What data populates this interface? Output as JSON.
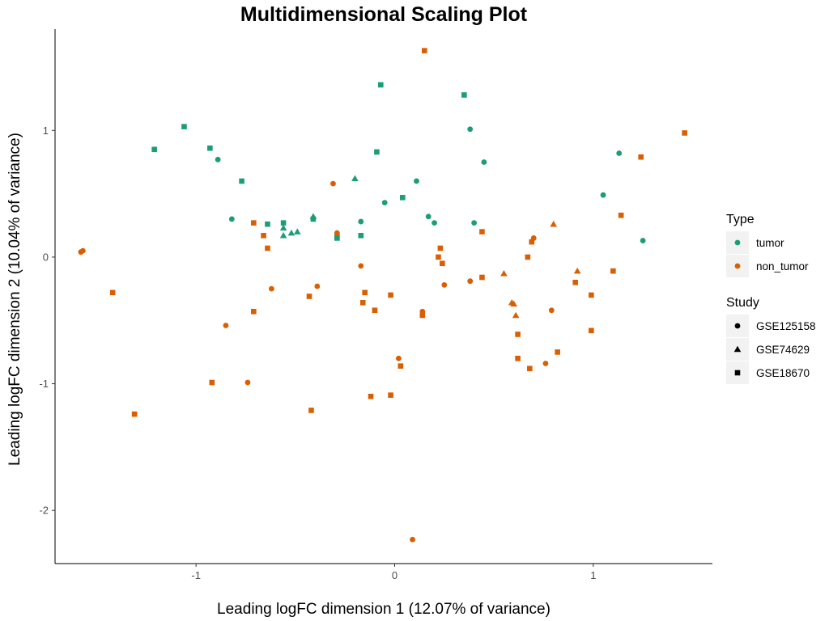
{
  "chart_data": {
    "type": "scatter",
    "title": "Multidimensional Scaling Plot",
    "xlabel": "Leading logFC dimension 1 (12.07% of variance)",
    "ylabel": "Leading logFC dimension 2 (10.04% of variance)",
    "xlim": [
      -1.71,
      1.6
    ],
    "ylim": [
      -2.42,
      1.8
    ],
    "x_ticks": [
      -1,
      0,
      1
    ],
    "y_ticks": [
      -2,
      -1,
      0,
      1
    ],
    "grid": false,
    "legend_position": "right",
    "legends": [
      {
        "title": "Type",
        "items": [
          {
            "label": "tumor",
            "color": "#1b9e77",
            "shape": "circle"
          },
          {
            "label": "non_tumor",
            "color": "#d95f02",
            "shape": "circle"
          }
        ]
      },
      {
        "title": "Study",
        "items": [
          {
            "label": "GSE125158",
            "color": "#000000",
            "shape": "circle"
          },
          {
            "label": "GSE74629",
            "color": "#000000",
            "shape": "triangle"
          },
          {
            "label": "GSE18670",
            "color": "#000000",
            "shape": "square"
          }
        ]
      }
    ],
    "colors": {
      "tumor": "#1b9e77",
      "non_tumor": "#d95f02"
    },
    "shapes": {
      "GSE125158": "circle",
      "GSE74629": "triangle",
      "GSE18670": "square"
    },
    "points": [
      {
        "x": -1.21,
        "y": 0.85,
        "type": "tumor",
        "study": "GSE18670"
      },
      {
        "x": -1.06,
        "y": 1.03,
        "type": "tumor",
        "study": "GSE18670"
      },
      {
        "x": -0.93,
        "y": 0.86,
        "type": "tumor",
        "study": "GSE18670"
      },
      {
        "x": -0.89,
        "y": 0.77,
        "type": "tumor",
        "study": "GSE125158"
      },
      {
        "x": -0.82,
        "y": 0.3,
        "type": "tumor",
        "study": "GSE125158"
      },
      {
        "x": -0.77,
        "y": 0.6,
        "type": "tumor",
        "study": "GSE18670"
      },
      {
        "x": -0.64,
        "y": 0.26,
        "type": "tumor",
        "study": "GSE18670"
      },
      {
        "x": -0.56,
        "y": 0.27,
        "type": "tumor",
        "study": "GSE18670"
      },
      {
        "x": -0.56,
        "y": 0.23,
        "type": "tumor",
        "study": "GSE74629"
      },
      {
        "x": -0.56,
        "y": 0.17,
        "type": "tumor",
        "study": "GSE74629"
      },
      {
        "x": -0.52,
        "y": 0.19,
        "type": "tumor",
        "study": "GSE74629"
      },
      {
        "x": -0.49,
        "y": 0.2,
        "type": "tumor",
        "study": "GSE74629"
      },
      {
        "x": -0.41,
        "y": 0.32,
        "type": "tumor",
        "study": "GSE74629"
      },
      {
        "x": -0.41,
        "y": 0.3,
        "type": "tumor",
        "study": "GSE18670"
      },
      {
        "x": -0.29,
        "y": 0.16,
        "type": "tumor",
        "study": "GSE18670"
      },
      {
        "x": -0.29,
        "y": 0.15,
        "type": "tumor",
        "study": "GSE18670"
      },
      {
        "x": -0.2,
        "y": 0.62,
        "type": "tumor",
        "study": "GSE74629"
      },
      {
        "x": -0.17,
        "y": 0.28,
        "type": "tumor",
        "study": "GSE125158"
      },
      {
        "x": -0.17,
        "y": 0.17,
        "type": "tumor",
        "study": "GSE18670"
      },
      {
        "x": -0.09,
        "y": 0.83,
        "type": "tumor",
        "study": "GSE18670"
      },
      {
        "x": -0.07,
        "y": 1.36,
        "type": "tumor",
        "study": "GSE18670"
      },
      {
        "x": -0.05,
        "y": 0.43,
        "type": "tumor",
        "study": "GSE125158"
      },
      {
        "x": 0.04,
        "y": 0.47,
        "type": "tumor",
        "study": "GSE18670"
      },
      {
        "x": 0.11,
        "y": 0.6,
        "type": "tumor",
        "study": "GSE125158"
      },
      {
        "x": 0.17,
        "y": 0.32,
        "type": "tumor",
        "study": "GSE125158"
      },
      {
        "x": 0.2,
        "y": 0.27,
        "type": "tumor",
        "study": "GSE125158"
      },
      {
        "x": 0.35,
        "y": 1.28,
        "type": "tumor",
        "study": "GSE18670"
      },
      {
        "x": 0.38,
        "y": 1.01,
        "type": "tumor",
        "study": "GSE125158"
      },
      {
        "x": 0.4,
        "y": 0.27,
        "type": "tumor",
        "study": "GSE125158"
      },
      {
        "x": 0.45,
        "y": 0.75,
        "type": "tumor",
        "study": "GSE125158"
      },
      {
        "x": 1.05,
        "y": 0.49,
        "type": "tumor",
        "study": "GSE125158"
      },
      {
        "x": 1.13,
        "y": 0.82,
        "type": "tumor",
        "study": "GSE125158"
      },
      {
        "x": 1.25,
        "y": 0.13,
        "type": "tumor",
        "study": "GSE125158"
      },
      {
        "x": -1.58,
        "y": 0.04,
        "type": "non_tumor",
        "study": "GSE125158"
      },
      {
        "x": -1.57,
        "y": 0.05,
        "type": "non_tumor",
        "study": "GSE125158"
      },
      {
        "x": -1.42,
        "y": -0.28,
        "type": "non_tumor",
        "study": "GSE18670"
      },
      {
        "x": -1.31,
        "y": -1.24,
        "type": "non_tumor",
        "study": "GSE18670"
      },
      {
        "x": -0.92,
        "y": -0.99,
        "type": "non_tumor",
        "study": "GSE18670"
      },
      {
        "x": -0.85,
        "y": -0.54,
        "type": "non_tumor",
        "study": "GSE125158"
      },
      {
        "x": -0.74,
        "y": -0.99,
        "type": "non_tumor",
        "study": "GSE125158"
      },
      {
        "x": -0.71,
        "y": 0.27,
        "type": "non_tumor",
        "study": "GSE18670"
      },
      {
        "x": -0.71,
        "y": -0.43,
        "type": "non_tumor",
        "study": "GSE18670"
      },
      {
        "x": -0.66,
        "y": 0.17,
        "type": "non_tumor",
        "study": "GSE18670"
      },
      {
        "x": -0.64,
        "y": 0.07,
        "type": "non_tumor",
        "study": "GSE18670"
      },
      {
        "x": -0.62,
        "y": -0.25,
        "type": "non_tumor",
        "study": "GSE125158"
      },
      {
        "x": -0.43,
        "y": -0.31,
        "type": "non_tumor",
        "study": "GSE18670"
      },
      {
        "x": -0.42,
        "y": -1.21,
        "type": "non_tumor",
        "study": "GSE18670"
      },
      {
        "x": -0.39,
        "y": -0.23,
        "type": "non_tumor",
        "study": "GSE125158"
      },
      {
        "x": -0.31,
        "y": 0.58,
        "type": "non_tumor",
        "study": "GSE125158"
      },
      {
        "x": -0.29,
        "y": 0.19,
        "type": "non_tumor",
        "study": "GSE125158"
      },
      {
        "x": -0.17,
        "y": -0.07,
        "type": "non_tumor",
        "study": "GSE125158"
      },
      {
        "x": -0.16,
        "y": -0.36,
        "type": "non_tumor",
        "study": "GSE18670"
      },
      {
        "x": -0.15,
        "y": -0.28,
        "type": "non_tumor",
        "study": "GSE18670"
      },
      {
        "x": -0.12,
        "y": -1.1,
        "type": "non_tumor",
        "study": "GSE18670"
      },
      {
        "x": -0.1,
        "y": -0.42,
        "type": "non_tumor",
        "study": "GSE18670"
      },
      {
        "x": -0.02,
        "y": -0.3,
        "type": "non_tumor",
        "study": "GSE18670"
      },
      {
        "x": -0.02,
        "y": -1.09,
        "type": "non_tumor",
        "study": "GSE18670"
      },
      {
        "x": 0.02,
        "y": -0.8,
        "type": "non_tumor",
        "study": "GSE125158"
      },
      {
        "x": 0.03,
        "y": -0.86,
        "type": "non_tumor",
        "study": "GSE18670"
      },
      {
        "x": 0.09,
        "y": -2.23,
        "type": "non_tumor",
        "study": "GSE125158"
      },
      {
        "x": 0.15,
        "y": 1.63,
        "type": "non_tumor",
        "study": "GSE18670"
      },
      {
        "x": 0.14,
        "y": -0.43,
        "type": "non_tumor",
        "study": "GSE125158"
      },
      {
        "x": 0.14,
        "y": -0.46,
        "type": "non_tumor",
        "study": "GSE18670"
      },
      {
        "x": 0.22,
        "y": 0.0,
        "type": "non_tumor",
        "study": "GSE18670"
      },
      {
        "x": 0.23,
        "y": 0.07,
        "type": "non_tumor",
        "study": "GSE18670"
      },
      {
        "x": 0.24,
        "y": -0.05,
        "type": "non_tumor",
        "study": "GSE18670"
      },
      {
        "x": 0.25,
        "y": -0.22,
        "type": "non_tumor",
        "study": "GSE125158"
      },
      {
        "x": 0.38,
        "y": -0.19,
        "type": "non_tumor",
        "study": "GSE125158"
      },
      {
        "x": 0.44,
        "y": 0.2,
        "type": "non_tumor",
        "study": "GSE18670"
      },
      {
        "x": 0.44,
        "y": -0.16,
        "type": "non_tumor",
        "study": "GSE18670"
      },
      {
        "x": 0.55,
        "y": -0.13,
        "type": "non_tumor",
        "study": "GSE74629"
      },
      {
        "x": 0.59,
        "y": -0.36,
        "type": "non_tumor",
        "study": "GSE74629"
      },
      {
        "x": 0.6,
        "y": -0.37,
        "type": "non_tumor",
        "study": "GSE74629"
      },
      {
        "x": 0.61,
        "y": -0.46,
        "type": "non_tumor",
        "study": "GSE74629"
      },
      {
        "x": 0.62,
        "y": -0.61,
        "type": "non_tumor",
        "study": "GSE18670"
      },
      {
        "x": 0.62,
        "y": -0.8,
        "type": "non_tumor",
        "study": "GSE18670"
      },
      {
        "x": 0.67,
        "y": 0.0,
        "type": "non_tumor",
        "study": "GSE18670"
      },
      {
        "x": 0.68,
        "y": -0.88,
        "type": "non_tumor",
        "study": "GSE18670"
      },
      {
        "x": 0.69,
        "y": 0.12,
        "type": "non_tumor",
        "study": "GSE18670"
      },
      {
        "x": 0.7,
        "y": 0.15,
        "type": "non_tumor",
        "study": "GSE125158"
      },
      {
        "x": 0.76,
        "y": -0.84,
        "type": "non_tumor",
        "study": "GSE125158"
      },
      {
        "x": 0.79,
        "y": -0.42,
        "type": "non_tumor",
        "study": "GSE125158"
      },
      {
        "x": 0.8,
        "y": 0.26,
        "type": "non_tumor",
        "study": "GSE74629"
      },
      {
        "x": 0.82,
        "y": -0.75,
        "type": "non_tumor",
        "study": "GSE18670"
      },
      {
        "x": 0.91,
        "y": -0.2,
        "type": "non_tumor",
        "study": "GSE18670"
      },
      {
        "x": 0.92,
        "y": -0.11,
        "type": "non_tumor",
        "study": "GSE74629"
      },
      {
        "x": 0.99,
        "y": -0.3,
        "type": "non_tumor",
        "study": "GSE18670"
      },
      {
        "x": 0.99,
        "y": -0.58,
        "type": "non_tumor",
        "study": "GSE18670"
      },
      {
        "x": 1.1,
        "y": -0.11,
        "type": "non_tumor",
        "study": "GSE18670"
      },
      {
        "x": 1.14,
        "y": 0.33,
        "type": "non_tumor",
        "study": "GSE18670"
      },
      {
        "x": 1.24,
        "y": 0.79,
        "type": "non_tumor",
        "study": "GSE18670"
      },
      {
        "x": 1.46,
        "y": 0.98,
        "type": "non_tumor",
        "study": "GSE18670"
      }
    ]
  }
}
